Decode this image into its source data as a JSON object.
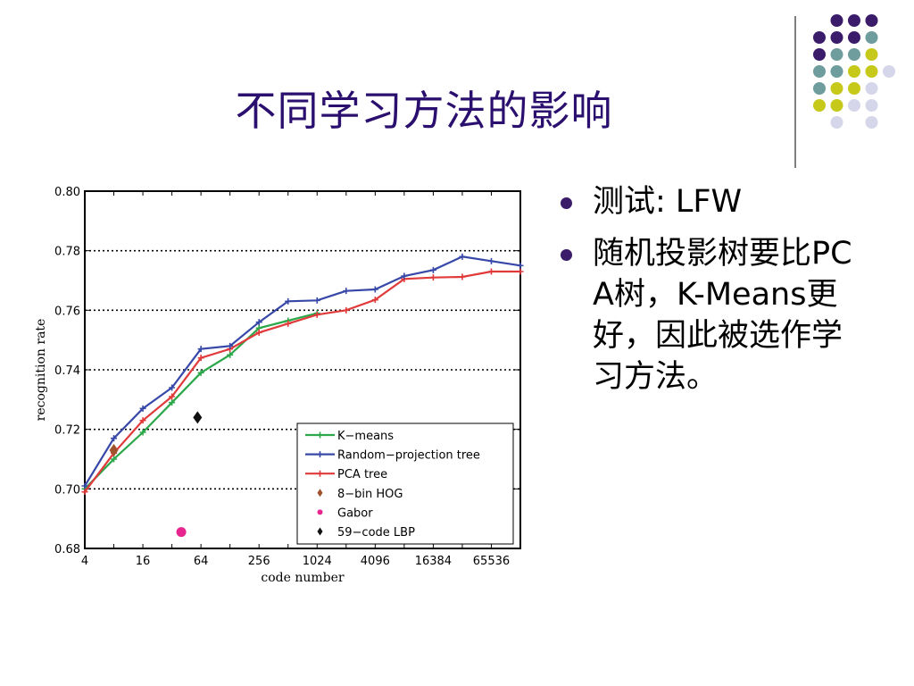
{
  "slide": {
    "title": "不同学习方法的影响",
    "bullets": [
      "测试: LFW",
      "随机投影树要比PCA树，K-Means更好，因此被选作学习方法。"
    ],
    "accent_colors": [
      "#3b1c6b",
      "#6f9c9c",
      "#c7c91a",
      "#d6d6ea"
    ]
  },
  "chart_data": {
    "type": "line",
    "xlabel": "code number",
    "ylabel": "recognition rate",
    "x_scale": "log2",
    "xlim": [
      4,
      131072
    ],
    "ylim": [
      0.68,
      0.8
    ],
    "x_ticks": [
      4,
      16,
      64,
      256,
      1024,
      4096,
      16384,
      65536
    ],
    "x_tick_labels": [
      "4",
      "16",
      "64",
      "256",
      "1024",
      "4096",
      "16384",
      "65536"
    ],
    "y_ticks": [
      0.68,
      0.7,
      0.72,
      0.74,
      0.76,
      0.78,
      0.8
    ],
    "y_tick_labels": [
      "0.68",
      "0.70",
      "0.72",
      "0.74",
      "0.76",
      "0.78",
      "0.80"
    ],
    "grid": "horizontal dotted",
    "legend_position": "bottom-right",
    "series": [
      {
        "name": "K−means",
        "color": "#2ca84a",
        "marker": "plus",
        "x": [
          4,
          8,
          16,
          32,
          64,
          128,
          256,
          512,
          1024
        ],
        "y": [
          0.7,
          0.71,
          0.719,
          0.729,
          0.739,
          0.745,
          0.754,
          0.7565,
          0.759
        ]
      },
      {
        "name": "Random−projection tree",
        "color": "#3848a8",
        "marker": "plus",
        "x": [
          4,
          8,
          16,
          32,
          64,
          128,
          256,
          512,
          1024,
          2048,
          4096,
          8192,
          16384,
          32768,
          65536,
          131072
        ],
        "y": [
          0.701,
          0.717,
          0.727,
          0.734,
          0.747,
          0.748,
          0.756,
          0.763,
          0.7633,
          0.7665,
          0.767,
          0.7715,
          0.7735,
          0.778,
          0.7765,
          0.775
        ]
      },
      {
        "name": "PCA tree",
        "color": "#e03a3a",
        "marker": "plus",
        "x": [
          4,
          8,
          16,
          32,
          64,
          128,
          256,
          512,
          1024,
          2048,
          4096,
          8192,
          16384,
          32768,
          65536,
          131072
        ],
        "y": [
          0.699,
          0.712,
          0.723,
          0.731,
          0.744,
          0.747,
          0.7525,
          0.7555,
          0.7585,
          0.76,
          0.7635,
          0.7705,
          0.771,
          0.7712,
          0.773,
          0.773
        ]
      },
      {
        "name": "8−bin HOG",
        "color": "#a0522d",
        "marker": "diamond",
        "x": [
          8
        ],
        "y": [
          0.713
        ]
      },
      {
        "name": "Gabor",
        "color": "#e8258e",
        "marker": "circle",
        "x": [
          40
        ],
        "y": [
          0.6855
        ]
      },
      {
        "name": "59−code LBP",
        "color": "#111111",
        "marker": "diamond",
        "x": [
          59
        ],
        "y": [
          0.724
        ]
      }
    ]
  }
}
